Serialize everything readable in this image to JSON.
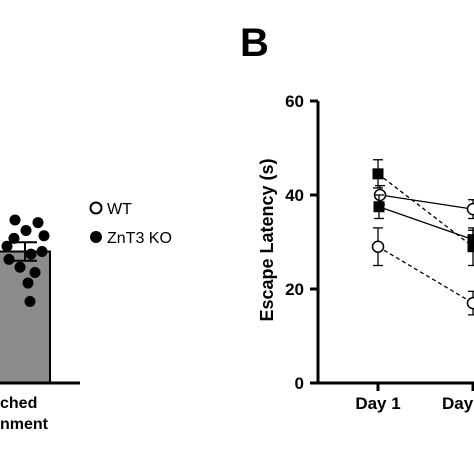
{
  "panel_label": "B",
  "legend": [
    {
      "label": "WT",
      "marker": "open-circle"
    },
    {
      "label": "ZnT3 KO",
      "marker": "filled-circle"
    }
  ],
  "colors": {
    "bar_fill": "#8c8c8c",
    "ink": "#000000"
  },
  "chart_data": [
    {
      "type": "bar",
      "title": "",
      "categories": [
        "ched",
        "nment"
      ],
      "xtick_lines": [
        "ched",
        "nment"
      ],
      "bar": {
        "mean": 0.5,
        "error": 0.035
      },
      "points": [
        0.52,
        0.58,
        0.61,
        0.55,
        0.49,
        0.47,
        0.5,
        0.44,
        0.42,
        0.38,
        0.31,
        0.62,
        0.56
      ],
      "note": "partially cropped panel; y axis not visible"
    },
    {
      "type": "line",
      "title": "",
      "xlabel": "",
      "ylabel": "Escape Latency (s)",
      "ylim": [
        0,
        60
      ],
      "yticks": [
        0,
        20,
        40,
        60
      ],
      "categories": [
        "Day 1",
        "Day"
      ],
      "series": [
        {
          "marker": "open-circle",
          "line": "solid",
          "values": [
            40,
            37
          ],
          "errors": [
            2.0,
            2.0
          ]
        },
        {
          "marker": "open-circle",
          "line": "dashed",
          "values": [
            29,
            17
          ],
          "errors": [
            4.0,
            2.5
          ]
        },
        {
          "marker": "filled-square",
          "line": "solid",
          "values": [
            37.5,
            30.5
          ],
          "errors": [
            2.5,
            2.0
          ]
        },
        {
          "marker": "filled-square",
          "line": "dashed",
          "values": [
            44.5,
            29
          ],
          "errors": [
            3.0,
            4.0
          ]
        }
      ]
    }
  ]
}
